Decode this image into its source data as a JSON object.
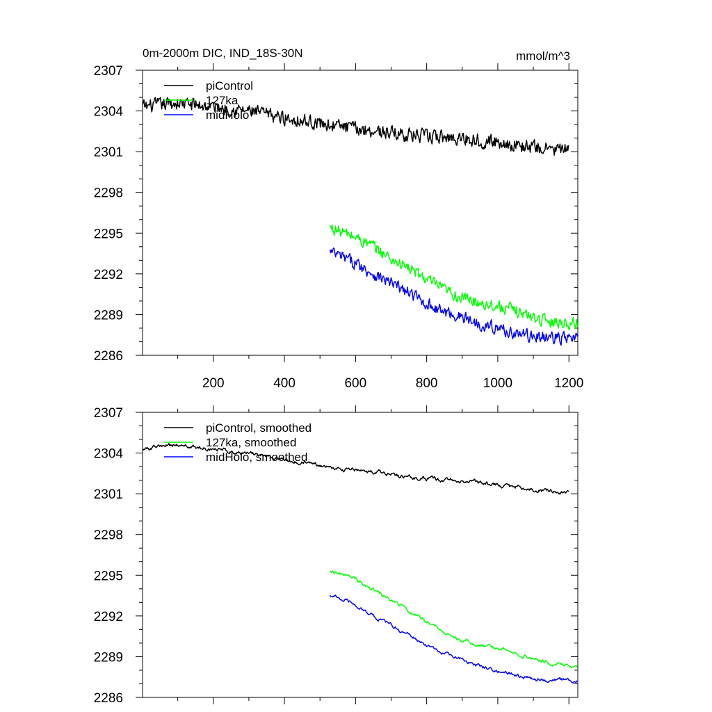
{
  "chart_data": [
    {
      "type": "line",
      "title": "0m-2000m DIC, IND_18S-30N",
      "units": "mmol/m^3",
      "xlim": [
        1,
        1225
      ],
      "ylim": [
        2286,
        2307
      ],
      "yticks": [
        "2286",
        "2289",
        "2292",
        "2295",
        "2298",
        "2301",
        "2304",
        "2307"
      ],
      "xticks": [
        "200",
        "400",
        "600",
        "800",
        "1000",
        "1200"
      ],
      "legend_position": "top-left",
      "series": [
        {
          "name": "piControl",
          "color": "#000000",
          "x_start": 1,
          "x_end": 1200,
          "trend": [
            [
              1,
              2304.3
            ],
            [
              100,
              2304.6
            ],
            [
              200,
              2304.3
            ],
            [
              300,
              2304.0
            ],
            [
              400,
              2303.5
            ],
            [
              500,
              2303.1
            ],
            [
              600,
              2302.7
            ],
            [
              700,
              2302.4
            ],
            [
              800,
              2302.1
            ],
            [
              900,
              2302.0
            ],
            [
              1000,
              2301.7
            ],
            [
              1100,
              2301.3
            ],
            [
              1200,
              2301.1
            ]
          ],
          "noise": 0.45
        },
        {
          "name": "127ka",
          "color": "#00ff00",
          "x_start": 528,
          "x_end": 1225,
          "trend": [
            [
              528,
              2295.4
            ],
            [
              600,
              2294.7
            ],
            [
              650,
              2294.0
            ],
            [
              700,
              2293.1
            ],
            [
              750,
              2292.4
            ],
            [
              800,
              2291.6
            ],
            [
              850,
              2290.8
            ],
            [
              900,
              2290.2
            ],
            [
              950,
              2289.9
            ],
            [
              1000,
              2289.6
            ],
            [
              1050,
              2289.3
            ],
            [
              1100,
              2288.8
            ],
            [
              1150,
              2288.5
            ],
            [
              1225,
              2288.3
            ]
          ],
          "noise": 0.4
        },
        {
          "name": "midHolo",
          "color": "#0000ff",
          "x_start": 528,
          "x_end": 1225,
          "trend": [
            [
              528,
              2293.6
            ],
            [
              600,
              2292.8
            ],
            [
              650,
              2292.0
            ],
            [
              700,
              2291.3
            ],
            [
              750,
              2290.6
            ],
            [
              800,
              2289.8
            ],
            [
              850,
              2289.2
            ],
            [
              900,
              2288.8
            ],
            [
              950,
              2288.3
            ],
            [
              1000,
              2288.0
            ],
            [
              1050,
              2287.6
            ],
            [
              1100,
              2287.4
            ],
            [
              1150,
              2287.3
            ],
            [
              1225,
              2287.2
            ]
          ],
          "noise": 0.4
        }
      ]
    },
    {
      "type": "line",
      "xlim": [
        1,
        1225
      ],
      "ylim": [
        2286,
        2307
      ],
      "yticks": [
        "2286",
        "2289",
        "2292",
        "2295",
        "2298",
        "2301",
        "2304",
        "2307"
      ],
      "legend_position": "top-left",
      "series": [
        {
          "name": "piControl, smoothed",
          "color": "#000000",
          "x_start": 1,
          "x_end": 1200,
          "trend": [
            [
              1,
              2304.3
            ],
            [
              100,
              2304.6
            ],
            [
              200,
              2304.3
            ],
            [
              300,
              2304.0
            ],
            [
              400,
              2303.5
            ],
            [
              500,
              2303.1
            ],
            [
              600,
              2302.7
            ],
            [
              700,
              2302.4
            ],
            [
              800,
              2302.1
            ],
            [
              900,
              2302.0
            ],
            [
              1000,
              2301.7
            ],
            [
              1100,
              2301.3
            ],
            [
              1200,
              2301.1
            ]
          ],
          "noise": 0.22
        },
        {
          "name": "127ka, smoothed",
          "color": "#00ff00",
          "x_start": 528,
          "x_end": 1225,
          "trend": [
            [
              528,
              2295.4
            ],
            [
              600,
              2294.7
            ],
            [
              650,
              2294.0
            ],
            [
              700,
              2293.1
            ],
            [
              750,
              2292.4
            ],
            [
              800,
              2291.6
            ],
            [
              850,
              2290.8
            ],
            [
              900,
              2290.2
            ],
            [
              950,
              2289.9
            ],
            [
              1000,
              2289.6
            ],
            [
              1050,
              2289.3
            ],
            [
              1100,
              2288.8
            ],
            [
              1150,
              2288.5
            ],
            [
              1225,
              2288.3
            ]
          ],
          "noise": 0.2
        },
        {
          "name": "midHolo, smoothed",
          "color": "#0000ff",
          "x_start": 528,
          "x_end": 1225,
          "trend": [
            [
              528,
              2293.6
            ],
            [
              600,
              2292.8
            ],
            [
              650,
              2292.0
            ],
            [
              700,
              2291.3
            ],
            [
              750,
              2290.6
            ],
            [
              800,
              2289.8
            ],
            [
              850,
              2289.2
            ],
            [
              900,
              2288.8
            ],
            [
              950,
              2288.3
            ],
            [
              1000,
              2288.0
            ],
            [
              1050,
              2287.6
            ],
            [
              1100,
              2287.4
            ],
            [
              1150,
              2287.3
            ],
            [
              1225,
              2287.2
            ]
          ],
          "noise": 0.2
        }
      ]
    }
  ]
}
